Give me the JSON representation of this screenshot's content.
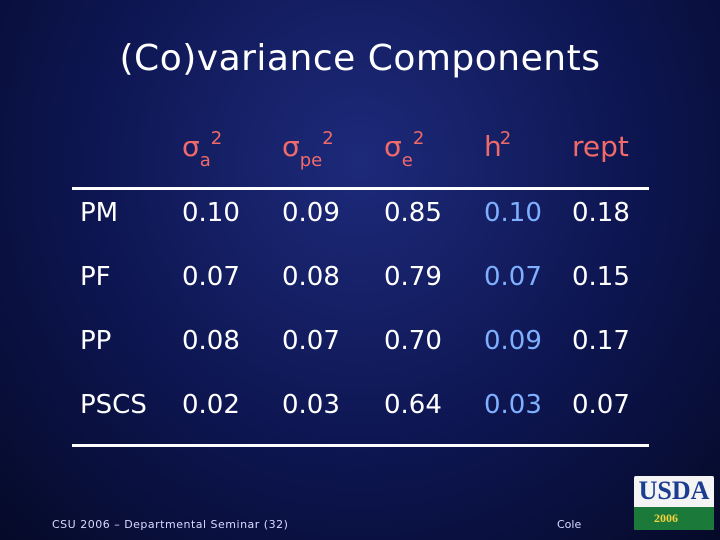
{
  "title": "(Co)variance Components",
  "headers": {
    "sigma_a": {
      "symbol": "σ",
      "sub": "a",
      "sup": "2"
    },
    "sigma_pe": {
      "symbol": "σ",
      "sub": "pe",
      "sup": "2"
    },
    "sigma_e": {
      "symbol": "σ",
      "sub": "e",
      "sup": "2"
    },
    "h2": {
      "base": "h",
      "sup": "2"
    },
    "rept": "rept"
  },
  "rows": [
    {
      "label": "PM",
      "sigma_a": "0.10",
      "sigma_pe": "0.09",
      "sigma_e": "0.85",
      "h2": "0.10",
      "rept": "0.18"
    },
    {
      "label": "PF",
      "sigma_a": "0.07",
      "sigma_pe": "0.08",
      "sigma_e": "0.79",
      "h2": "0.07",
      "rept": "0.15"
    },
    {
      "label": "PP",
      "sigma_a": "0.08",
      "sigma_pe": "0.07",
      "sigma_e": "0.70",
      "h2": "0.09",
      "rept": "0.17"
    },
    {
      "label": "PSCS",
      "sigma_a": "0.02",
      "sigma_pe": "0.03",
      "sigma_e": "0.64",
      "h2": "0.03",
      "rept": "0.07"
    }
  ],
  "footer": {
    "left": "CSU 2006 – Departmental Seminar (32)",
    "right": "Cole"
  },
  "logo": {
    "name": "USDA",
    "year": "2006"
  },
  "colors": {
    "header": "#f06a6a",
    "h2_column": "#7fb0ff",
    "text": "#ffffff"
  }
}
